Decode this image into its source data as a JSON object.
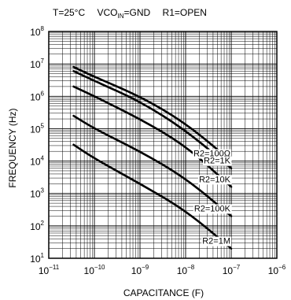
{
  "chart_data": {
    "type": "line",
    "title_parts": {
      "temp": "T=25°C",
      "vco_prefix": "VCO",
      "vco_sub": "IN",
      "vco_suffix": "=GND",
      "r1": "R1=OPEN"
    },
    "xlabel": "CAPACITANCE (F)",
    "ylabel": "FREQUENCY (Hz)",
    "x_scale": "log",
    "y_scale": "log",
    "xlim": [
      1e-11,
      1e-06
    ],
    "ylim": [
      10,
      100000000
    ],
    "x_ticks": [
      {
        "value": 1e-11,
        "base": "10",
        "exp": "−11"
      },
      {
        "value": 1e-10,
        "base": "10",
        "exp": "−10"
      },
      {
        "value": 1e-09,
        "base": "10",
        "exp": "−9"
      },
      {
        "value": 1e-08,
        "base": "10",
        "exp": "−8"
      },
      {
        "value": 1e-07,
        "base": "10",
        "exp": "−7"
      },
      {
        "value": 1e-06,
        "base": "10",
        "exp": "−6"
      }
    ],
    "y_ticks": [
      {
        "value": 10,
        "base": "10",
        "exp": "1"
      },
      {
        "value": 100,
        "base": "10",
        "exp": "2"
      },
      {
        "value": 1000,
        "base": "10",
        "exp": "3"
      },
      {
        "value": 10000,
        "base": "10",
        "exp": "4"
      },
      {
        "value": 100000,
        "base": "10",
        "exp": "5"
      },
      {
        "value": 1000000,
        "base": "10",
        "exp": "6"
      },
      {
        "value": 10000000,
        "base": "10",
        "exp": "7"
      },
      {
        "value": 100000000,
        "base": "10",
        "exp": "8"
      }
    ],
    "grid": true,
    "series": [
      {
        "name": "R2=100Ω",
        "x": [
          3.5e-11,
          1e-10,
          1e-09,
          1e-08,
          1e-07
        ],
        "y": [
          8000000,
          4000000,
          1000000,
          150000,
          10000
        ]
      },
      {
        "name": "R2=1K",
        "x": [
          3.5e-11,
          1e-10,
          1e-09,
          1e-08,
          1e-07
        ],
        "y": [
          6000000,
          3000000,
          700000,
          90000,
          6000
        ]
      },
      {
        "name": "R2=10K",
        "x": [
          3.5e-11,
          1e-10,
          1e-09,
          1e-08,
          1e-07
        ],
        "y": [
          2000000,
          1000000,
          200000,
          30000,
          1600
        ]
      },
      {
        "name": "R2=100K",
        "x": [
          3.5e-11,
          1e-10,
          1e-09,
          1e-08,
          1e-07
        ],
        "y": [
          250000,
          100000,
          20000,
          3000,
          200
        ]
      },
      {
        "name": "R2=1M",
        "x": [
          3.5e-11,
          1e-10,
          1e-09,
          1e-08,
          1e-07
        ],
        "y": [
          32000,
          12000,
          2000,
          300,
          20
        ]
      }
    ]
  }
}
